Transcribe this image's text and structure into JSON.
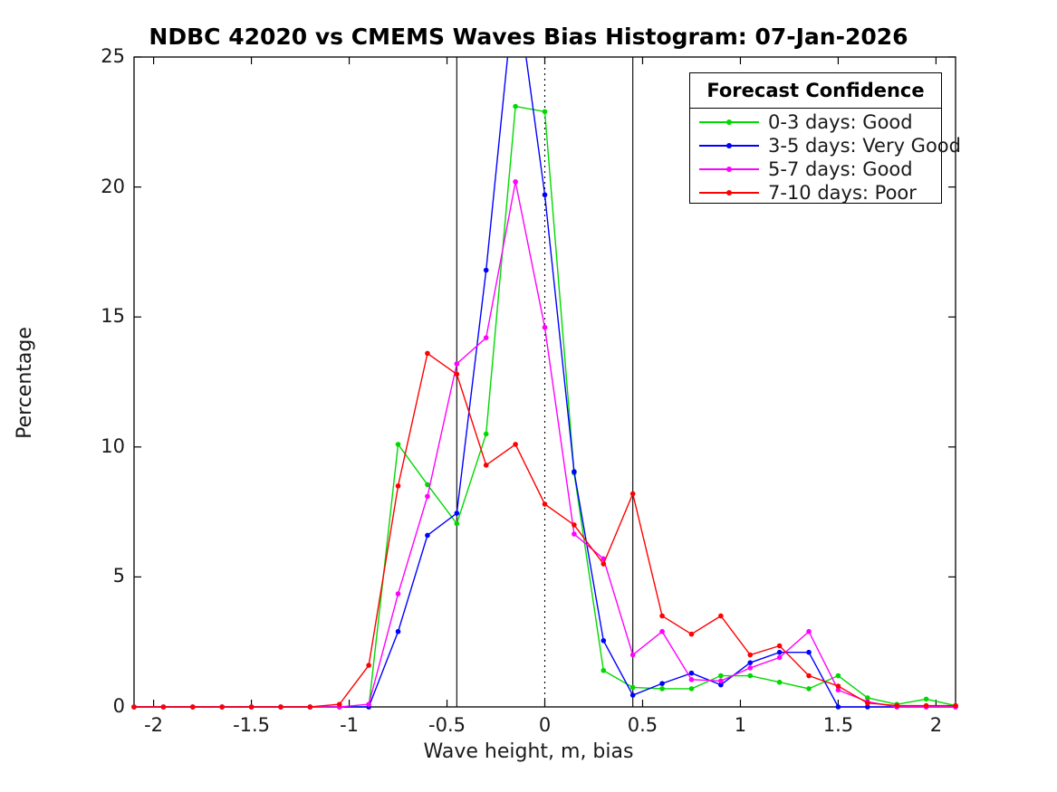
{
  "figure": {
    "title": "NDBC 42020 vs CMEMS Waves Bias Histogram: 07-Jan-2026"
  },
  "chart_data": {
    "type": "line",
    "title": "NDBC 42020 vs CMEMS Waves Bias Histogram: 07-Jan-2026",
    "xlabel": "Wave height, m, bias",
    "ylabel": "Percentage",
    "xlim": [
      -2.1,
      2.1
    ],
    "ylim": [
      0,
      25
    ],
    "grid": false,
    "marker": "dot",
    "xticks": {
      "values": [
        -2,
        -1.5,
        -1,
        -0.5,
        0,
        0.5,
        1,
        1.5,
        2
      ],
      "labels": [
        "-2",
        "-1.5",
        "-1",
        "-0.5",
        "0",
        "0.5",
        "1",
        "1.5",
        "2"
      ]
    },
    "yticks": {
      "values": [
        0,
        5,
        10,
        15,
        20,
        25
      ],
      "labels": [
        "0",
        "5",
        "10",
        "15",
        "20",
        "25"
      ]
    },
    "x": [
      -2.1,
      -1.95,
      -1.8,
      -1.65,
      -1.5,
      -1.35,
      -1.2,
      -1.05,
      -0.9,
      -0.75,
      -0.6,
      -0.45,
      -0.3,
      -0.15,
      0,
      0.15,
      0.3,
      0.45,
      0.6,
      0.75,
      0.9,
      1.05,
      1.2,
      1.35,
      1.5,
      1.65,
      1.8,
      1.95,
      2.1
    ],
    "series": [
      {
        "name": "0-3 days: Good",
        "color": "#00D900",
        "values": [
          0,
          0,
          0,
          0,
          0,
          0,
          0,
          0,
          0,
          10.1,
          8.55,
          7.05,
          10.5,
          23.1,
          22.9,
          9.0,
          1.4,
          0.75,
          0.7,
          0.7,
          1.2,
          1.2,
          0.95,
          0.7,
          1.2,
          0.35,
          0.1,
          0.3,
          0.05
        ]
      },
      {
        "name": "3-5 days: Very Good",
        "color": "#0000FF",
        "values": [
          0,
          0,
          0,
          0,
          0,
          0,
          0,
          0,
          0,
          2.9,
          6.6,
          7.45,
          16.8,
          28,
          19.7,
          9.05,
          2.55,
          0.45,
          0.9,
          1.3,
          0.85,
          1.7,
          2.1,
          2.1,
          0,
          0,
          0,
          0,
          0
        ]
      },
      {
        "name": "5-7 days: Good",
        "color": "#FF00FF",
        "values": [
          0,
          0,
          0,
          0,
          0,
          0,
          0,
          0,
          0.1,
          4.35,
          8.1,
          13.2,
          14.2,
          20.2,
          14.6,
          6.65,
          5.7,
          2.0,
          2.9,
          1.05,
          1.0,
          1.5,
          1.9,
          2.9,
          0.65,
          0.2,
          0,
          0,
          0
        ]
      },
      {
        "name": "7-10 days: Poor",
        "color": "#FF0000",
        "values": [
          0,
          0,
          0,
          0,
          0,
          0,
          0,
          0.1,
          1.6,
          8.5,
          13.6,
          12.8,
          9.3,
          10.1,
          7.8,
          7.0,
          5.5,
          8.2,
          3.5,
          2.8,
          3.5,
          2.0,
          2.35,
          1.2,
          0.8,
          0.15,
          0.05,
          0.05,
          0.05
        ]
      }
    ],
    "reference_lines": [
      {
        "x": -0.45,
        "style": "solid"
      },
      {
        "x": 0,
        "style": "dotted"
      },
      {
        "x": 0.45,
        "style": "solid"
      }
    ],
    "legend": {
      "title": "Forecast Confidence",
      "position": "upper right",
      "entries": [
        "0-3 days: Good",
        "3-5 days: Very Good",
        "5-7 days: Good",
        "7-10 days: Poor"
      ]
    }
  }
}
